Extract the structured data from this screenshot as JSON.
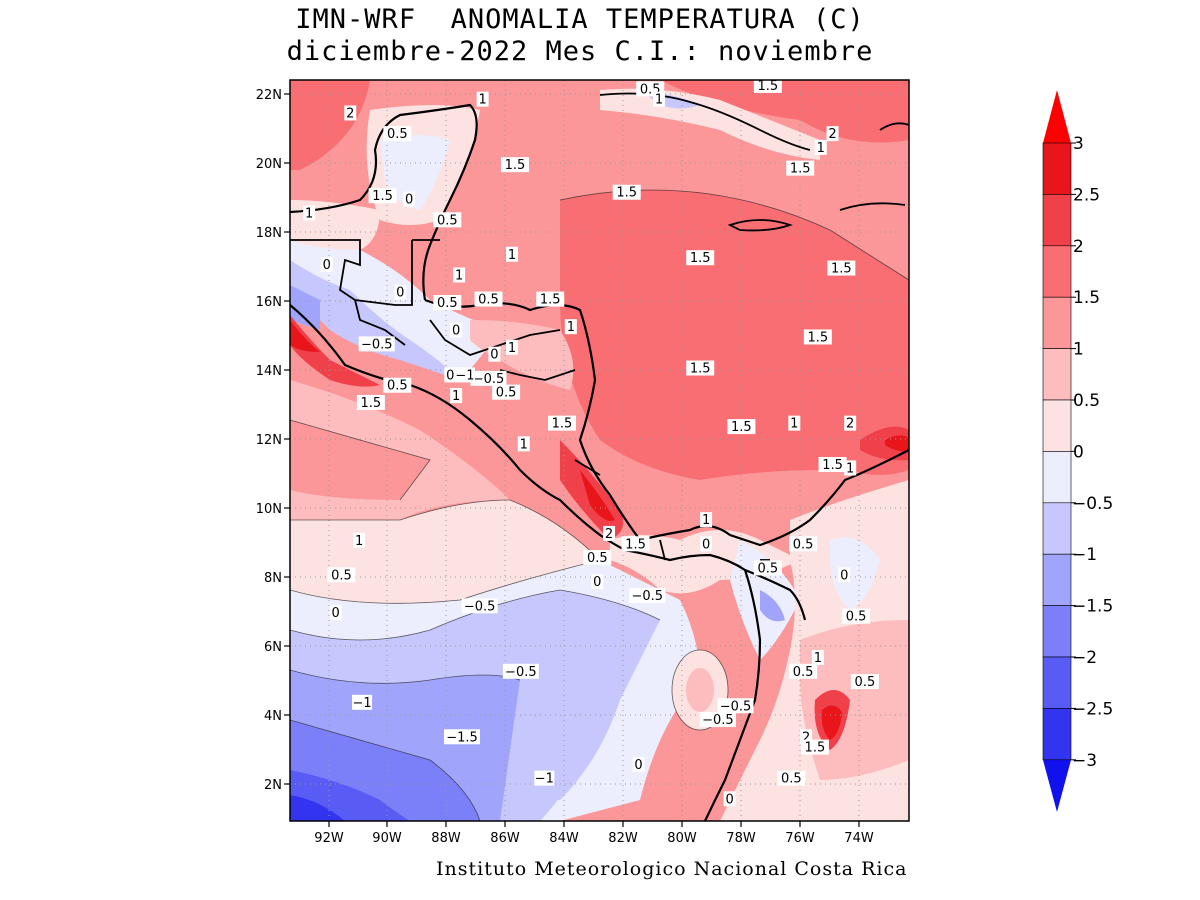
{
  "title": {
    "line1": "IMN-WRF  ANOMALIA TEMPERATURA (C)",
    "line2": "diciembre-2022 Mes C.I.: noviembre"
  },
  "credit": "Instituto Meteorologico Nacional Costa Rica",
  "axes": {
    "lat_ticks": [
      "22N",
      "20N",
      "18N",
      "16N",
      "14N",
      "12N",
      "10N",
      "8N",
      "6N",
      "4N",
      "2N"
    ],
    "lon_ticks": [
      "92W",
      "90W",
      "88W",
      "86W",
      "84W",
      "82W",
      "80W",
      "78W",
      "76W",
      "74W"
    ]
  },
  "legend": {
    "labels": [
      "3",
      "2.5",
      "2",
      "1.5",
      "1",
      "0.5",
      "0",
      "-0.5",
      "-1",
      "-1.5",
      "-2",
      "-2.5",
      "-3"
    ],
    "colors": [
      "#e8151b",
      "#f0404a",
      "#f86e72",
      "#fb9799",
      "#fdbcbd",
      "#fde2e2",
      "#ecedfd",
      "#c6c8fd",
      "#a1a4fb",
      "#7c80f8",
      "#585cf5",
      "#3234f0"
    ],
    "arrow_top_color": "#ff0000",
    "arrow_bottom_color": "#1111ee"
  },
  "contour_labels": [
    {
      "text": "2",
      "x": -91.3,
      "y": 21.4
    },
    {
      "text": "1",
      "x": -86.8,
      "y": 21.8
    },
    {
      "text": "0.5",
      "x": -81.1,
      "y": 22.1
    },
    {
      "text": "1",
      "x": -80.8,
      "y": 21.8
    },
    {
      "text": "1.5",
      "x": -77.1,
      "y": 22.2
    },
    {
      "text": "0.5",
      "x": -89.7,
      "y": 20.8
    },
    {
      "text": "2",
      "x": -74.9,
      "y": 20.8
    },
    {
      "text": "1",
      "x": -75.3,
      "y": 20.4
    },
    {
      "text": "1.5",
      "x": -85.7,
      "y": 19.9
    },
    {
      "text": "1.5",
      "x": -76.0,
      "y": 19.8
    },
    {
      "text": "1.5",
      "x": -90.2,
      "y": 19.0
    },
    {
      "text": "0",
      "x": -89.3,
      "y": 18.9
    },
    {
      "text": "1.5",
      "x": -81.9,
      "y": 19.1
    },
    {
      "text": "1",
      "x": -92.7,
      "y": 18.5
    },
    {
      "text": "0.5",
      "x": -88.0,
      "y": 18.3
    },
    {
      "text": "1",
      "x": -85.8,
      "y": 17.3
    },
    {
      "text": "1.5",
      "x": -79.4,
      "y": 17.2
    },
    {
      "text": "1.5",
      "x": -74.6,
      "y": 16.9
    },
    {
      "text": "0",
      "x": -92.1,
      "y": 17.0
    },
    {
      "text": "1",
      "x": -87.6,
      "y": 16.7
    },
    {
      "text": "0",
      "x": -89.6,
      "y": 16.2
    },
    {
      "text": "0.5",
      "x": -88.0,
      "y": 15.9
    },
    {
      "text": "0.5",
      "x": -86.6,
      "y": 16.0
    },
    {
      "text": "1.5",
      "x": -84.5,
      "y": 16.0
    },
    {
      "text": "1",
      "x": -83.8,
      "y": 15.2
    },
    {
      "text": "0",
      "x": -87.7,
      "y": 15.1
    },
    {
      "text": "1.5",
      "x": -75.4,
      "y": 14.9
    },
    {
      "text": "-0.5",
      "x": -90.4,
      "y": 14.7
    },
    {
      "text": "1",
      "x": -85.8,
      "y": 14.6
    },
    {
      "text": "0",
      "x": -86.4,
      "y": 14.4
    },
    {
      "text": "1.5",
      "x": -79.4,
      "y": 14.0
    },
    {
      "text": "0",
      "x": -87.9,
      "y": 13.8
    },
    {
      "text": "0.5",
      "x": -89.7,
      "y": 13.5
    },
    {
      "text": "-0.5",
      "x": -86.6,
      "y": 13.7
    },
    {
      "text": "-1",
      "x": -87.4,
      "y": 13.8
    },
    {
      "text": "0.5",
      "x": -86.0,
      "y": 13.3
    },
    {
      "text": "1",
      "x": -87.7,
      "y": 13.2
    },
    {
      "text": "1.5",
      "x": -90.6,
      "y": 13.0
    },
    {
      "text": "1.5",
      "x": -84.1,
      "y": 12.4
    },
    {
      "text": "1",
      "x": -76.2,
      "y": 12.4
    },
    {
      "text": "2",
      "x": -74.3,
      "y": 12.4
    },
    {
      "text": "1.5",
      "x": -78.0,
      "y": 12.3
    },
    {
      "text": "1",
      "x": -85.4,
      "y": 11.8
    },
    {
      "text": "1.5",
      "x": -74.9,
      "y": 11.2
    },
    {
      "text": "1",
      "x": -74.3,
      "y": 11.1
    },
    {
      "text": "1",
      "x": -79.2,
      "y": 9.6
    },
    {
      "text": "2",
      "x": -82.5,
      "y": 9.2
    },
    {
      "text": "1",
      "x": -91.0,
      "y": 9.0
    },
    {
      "text": "1.5",
      "x": -81.6,
      "y": 8.9
    },
    {
      "text": "0.5",
      "x": -82.9,
      "y": 8.5
    },
    {
      "text": "0",
      "x": -79.2,
      "y": 8.9
    },
    {
      "text": "0.5",
      "x": -75.9,
      "y": 8.9
    },
    {
      "text": "0.5",
      "x": -91.6,
      "y": 8.0
    },
    {
      "text": "0.5",
      "x": -77.1,
      "y": 8.2
    },
    {
      "text": "0",
      "x": -82.9,
      "y": 7.8
    },
    {
      "text": "0",
      "x": -74.5,
      "y": 8.0
    },
    {
      "text": "-0.5",
      "x": -81.2,
      "y": 7.4
    },
    {
      "text": "-0.5",
      "x": -86.9,
      "y": 7.1
    },
    {
      "text": "0",
      "x": -91.8,
      "y": 6.9
    },
    {
      "text": "0.5",
      "x": -74.1,
      "y": 6.8
    },
    {
      "text": "1",
      "x": -75.4,
      "y": 5.6
    },
    {
      "text": "0.5",
      "x": -75.9,
      "y": 5.2
    },
    {
      "text": "0.5",
      "x": -73.8,
      "y": 4.9
    },
    {
      "text": "-0.5",
      "x": -85.5,
      "y": 5.2
    },
    {
      "text": "-1",
      "x": -90.9,
      "y": 4.3
    },
    {
      "text": "-0.5",
      "x": -78.2,
      "y": 4.2
    },
    {
      "text": "-0.5",
      "x": -78.8,
      "y": 3.8
    },
    {
      "text": "-1.5",
      "x": -87.5,
      "y": 3.3
    },
    {
      "text": "2",
      "x": -75.8,
      "y": 3.3
    },
    {
      "text": "1.5",
      "x": -75.5,
      "y": 3.0
    },
    {
      "text": "0",
      "x": -81.5,
      "y": 2.5
    },
    {
      "text": "-1",
      "x": -84.7,
      "y": 2.1
    },
    {
      "text": "0.5",
      "x": -76.3,
      "y": 2.1
    },
    {
      "text": "0",
      "x": -78.4,
      "y": 1.5
    }
  ]
}
